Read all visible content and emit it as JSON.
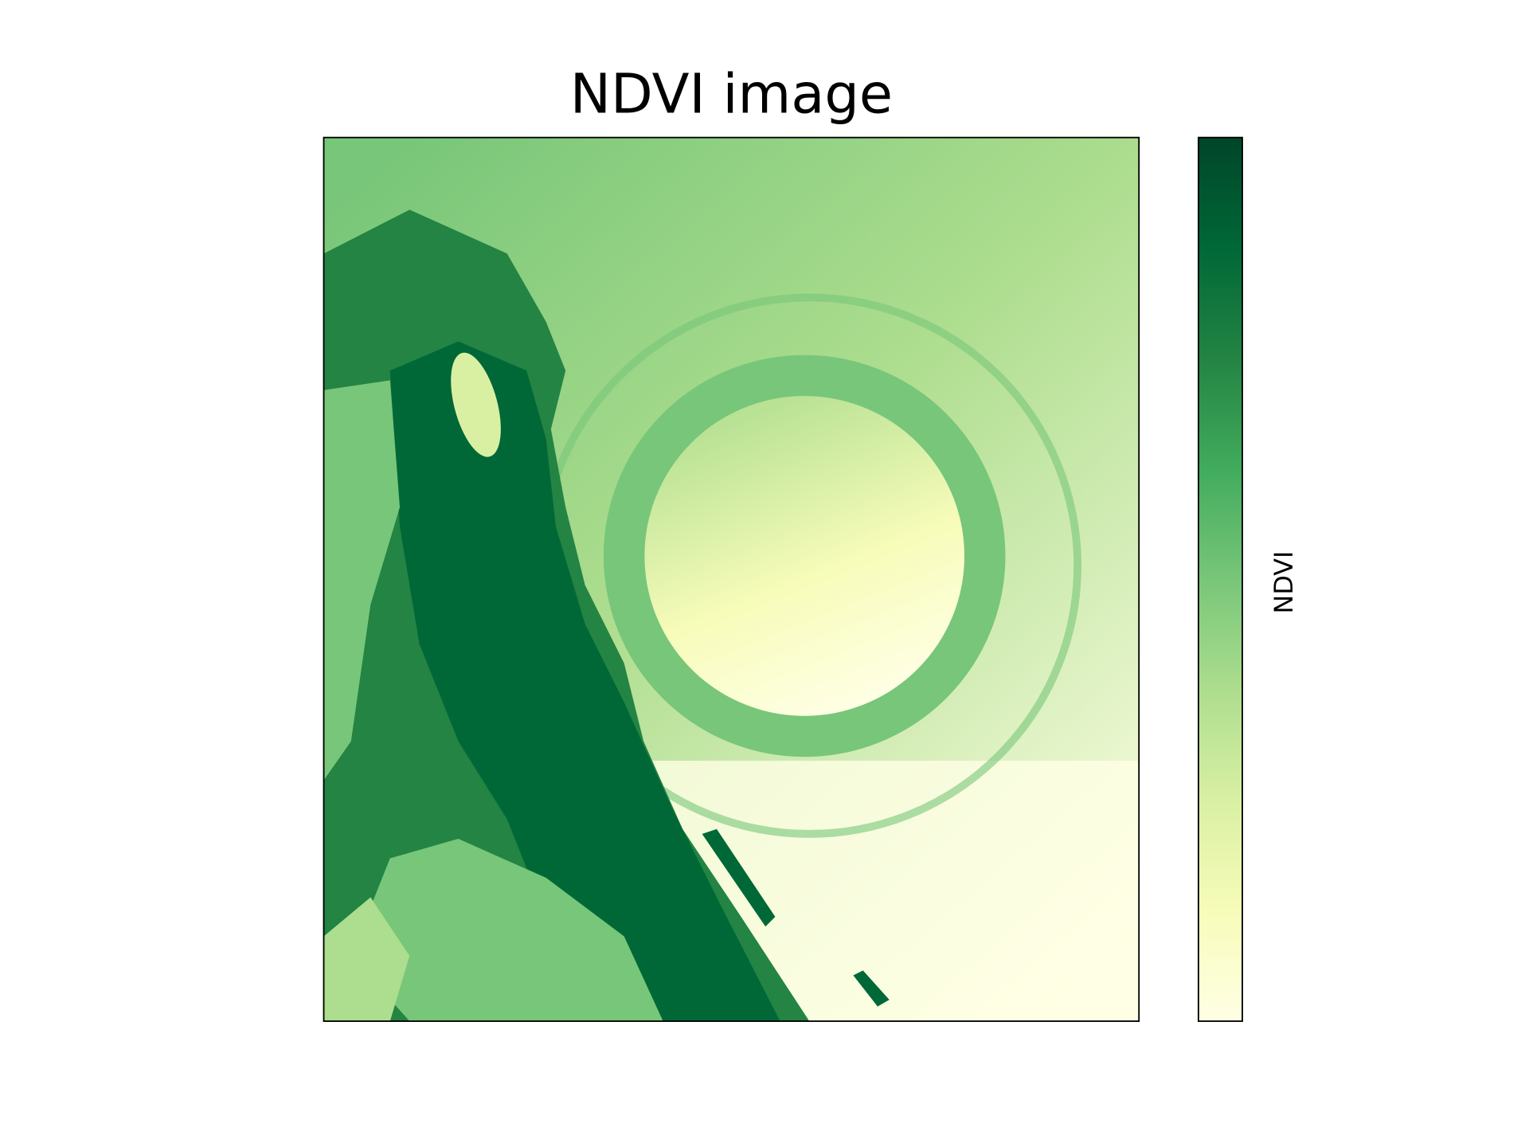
{
  "chart_data": {
    "type": "image",
    "title": "NDVI image",
    "colorbar_label": "NDVI",
    "colormap": [
      "#ffffe5",
      "#f7fcb9",
      "#d9f0a3",
      "#addd8e",
      "#78c679",
      "#41ab5d",
      "#238443",
      "#006837",
      "#004529"
    ]
  }
}
